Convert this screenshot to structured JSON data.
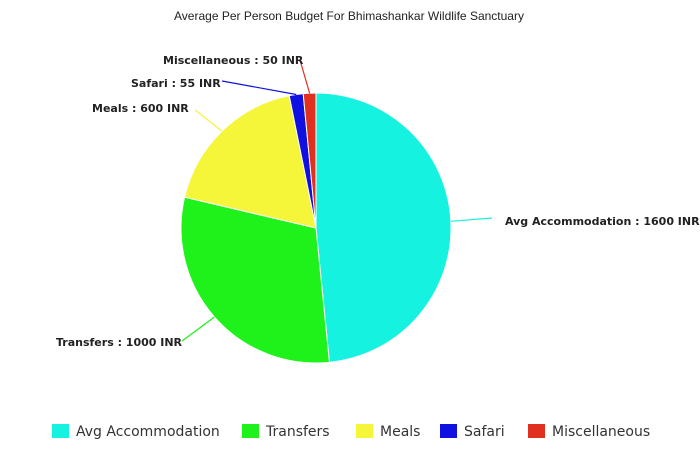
{
  "chart_data": {
    "type": "pie",
    "title": "Average Per Person Budget For Bhimashankar Wildlife Sanctuary",
    "slices": [
      {
        "name": "Avg Accommodation",
        "value": 1600,
        "color": "#16f2e0",
        "label": "Avg Accommodation : 1600 INR"
      },
      {
        "name": "Transfers",
        "value": 1000,
        "color": "#1ef21a",
        "label": "Transfers : 1000 INR"
      },
      {
        "name": "Meals",
        "value": 600,
        "color": "#f5f53a",
        "label": "Meals : 600 INR"
      },
      {
        "name": "Safari",
        "value": 55,
        "color": "#1010e0",
        "label": "Safari : 55 INR"
      },
      {
        "name": "Miscellaneous",
        "value": 50,
        "color": "#e03020",
        "label": "Miscellaneous : 50 INR"
      }
    ],
    "legend_position": "bottom"
  }
}
